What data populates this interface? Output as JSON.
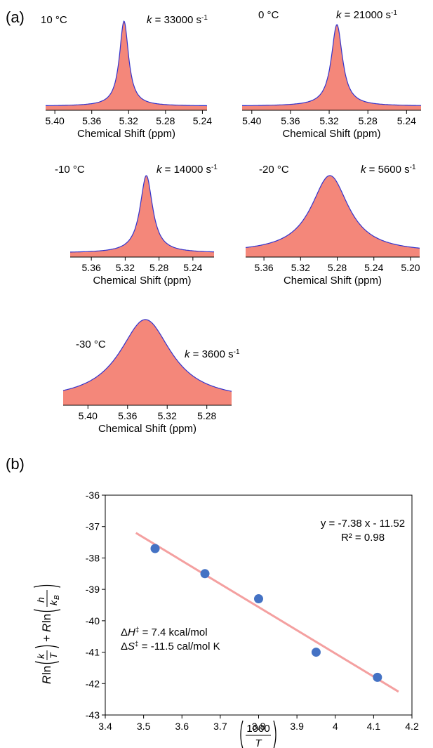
{
  "panels": {
    "a_label": "(a)",
    "b_label": "(b)"
  },
  "chart_data": [
    {
      "type": "area",
      "panel": "a",
      "temperature_label": "10 °C",
      "rate": {
        "prefix": "k",
        "value": " = 33000 s",
        "exp": "-1"
      },
      "xlabel": "Chemical Shift (ppm)",
      "x_ticks": [
        "5.40",
        "5.36",
        "5.32",
        "5.28",
        "5.24"
      ],
      "xlim": [
        5.41,
        5.235
      ],
      "x_reversed": true,
      "peak_center": 5.325,
      "linewidth_ppm": 0.006,
      "fill_color": "#f4877a",
      "line_color": "#3333cc"
    },
    {
      "type": "area",
      "panel": "a",
      "temperature_label": "0 °C",
      "rate": {
        "prefix": "k",
        "value": " = 21000 s",
        "exp": "-1"
      },
      "xlabel": "Chemical Shift (ppm)",
      "x_ticks": [
        "5.40",
        "5.36",
        "5.32",
        "5.28",
        "5.24"
      ],
      "xlim": [
        5.41,
        5.225
      ],
      "x_reversed": true,
      "peak_center": 5.312,
      "linewidth_ppm": 0.007,
      "fill_color": "#f4877a",
      "line_color": "#3333cc"
    },
    {
      "type": "area",
      "panel": "a",
      "temperature_label": "-10 °C",
      "rate": {
        "prefix": "k",
        "value": " = 14000 s",
        "exp": "-1"
      },
      "xlabel": "Chemical Shift (ppm)",
      "x_ticks": [
        "5.36",
        "5.32",
        "5.28",
        "5.24"
      ],
      "xlim": [
        5.385,
        5.215
      ],
      "x_reversed": true,
      "peak_center": 5.295,
      "linewidth_ppm": 0.009,
      "fill_color": "#f4877a",
      "line_color": "#3333cc"
    },
    {
      "type": "area",
      "panel": "a",
      "temperature_label": "-20 °C",
      "rate": {
        "prefix": "k",
        "value": " = 5600 s",
        "exp": "-1"
      },
      "xlabel": "Chemical Shift (ppm)",
      "x_ticks": [
        "5.36",
        "5.32",
        "5.28",
        "5.24",
        "5.20"
      ],
      "xlim": [
        5.38,
        5.19
      ],
      "x_reversed": true,
      "peak_center": 5.288,
      "linewidth_ppm": 0.025,
      "fill_color": "#f4877a",
      "line_color": "#3333cc"
    },
    {
      "type": "area",
      "panel": "a",
      "temperature_label": "-30 °C",
      "rate": {
        "prefix": "k",
        "value": " = 3600 s",
        "exp": "-1"
      },
      "xlabel": "Chemical Shift (ppm)",
      "x_ticks": [
        "5.40",
        "5.36",
        "5.32",
        "5.28"
      ],
      "xlim": [
        5.425,
        5.255
      ],
      "x_reversed": true,
      "peak_center": 5.342,
      "linewidth_ppm": 0.032,
      "fill_color": "#f4877a",
      "line_color": "#3333cc"
    },
    {
      "type": "scatter",
      "panel": "b",
      "x": [
        3.53,
        3.66,
        3.8,
        3.95,
        4.11
      ],
      "y": [
        -37.7,
        -38.5,
        -39.3,
        -41.0,
        -41.8
      ],
      "xlim": [
        3.4,
        4.2
      ],
      "ylim": [
        -43,
        -36
      ],
      "x_ticks": [
        "3.4",
        "3.5",
        "3.6",
        "3.7",
        "3.8",
        "3.9",
        "4",
        "4.1",
        "4.2"
      ],
      "y_ticks": [
        "-36",
        "-37",
        "-38",
        "-39",
        "-40",
        "-41",
        "-42",
        "-43"
      ],
      "trendline": {
        "slope": -7.38,
        "intercept": -11.52,
        "x_range": [
          3.48,
          4.165
        ]
      },
      "equation": "y = -7.38 x - 11.52",
      "r_squared": "R² = 0.98",
      "dH": {
        "symbol": "Δ",
        "var": "H",
        "sup": "‡",
        "value": " = 7.4 kcal/mol"
      },
      "dS": {
        "symbol": "Δ",
        "var": "S",
        "sup": "‡",
        "value": " = -11.5 cal/mol K"
      },
      "point_color": "#4472c4",
      "line_color": "#f4a0a0",
      "grid": false
    }
  ]
}
